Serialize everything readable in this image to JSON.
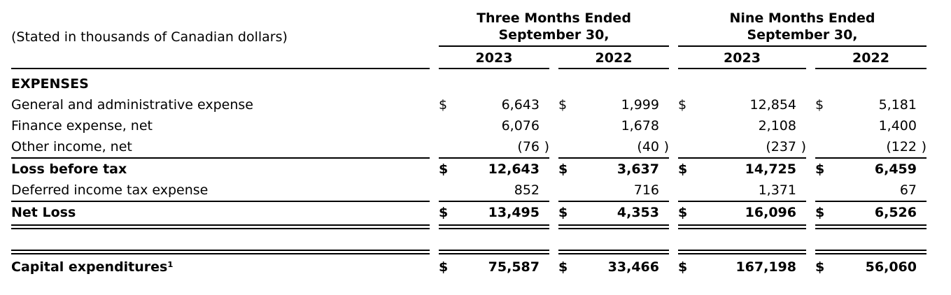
{
  "document": {
    "unit_note": "(Stated in thousands of Canadian dollars)",
    "header": {
      "groups": [
        {
          "line1": "Three Months Ended",
          "line2": "September 30,",
          "years": [
            "2023",
            "2022"
          ]
        },
        {
          "line1": "Nine Months Ended",
          "line2": "September 30,",
          "years": [
            "2023",
            "2022"
          ]
        }
      ]
    },
    "rows": [
      {
        "label": "EXPENSES",
        "cells": [
          {
            "dollar": "",
            "amount": "",
            "paren": ""
          },
          {
            "dollar": "",
            "amount": "",
            "paren": ""
          },
          {
            "dollar": "",
            "amount": "",
            "paren": ""
          },
          {
            "dollar": "",
            "amount": "",
            "paren": ""
          }
        ]
      },
      {
        "label": "General and administrative expense",
        "cells": [
          {
            "dollar": "$",
            "amount": "6,643",
            "paren": ""
          },
          {
            "dollar": "$",
            "amount": "1,999",
            "paren": ""
          },
          {
            "dollar": "$",
            "amount": "12,854",
            "paren": ""
          },
          {
            "dollar": "$",
            "amount": "5,181",
            "paren": ""
          }
        ]
      },
      {
        "label": "Finance expense, net",
        "cells": [
          {
            "dollar": "",
            "amount": "6,076",
            "paren": ""
          },
          {
            "dollar": "",
            "amount": "1,678",
            "paren": ""
          },
          {
            "dollar": "",
            "amount": "2,108",
            "paren": ""
          },
          {
            "dollar": "",
            "amount": "1,400",
            "paren": ""
          }
        ]
      },
      {
        "label": "Other income, net",
        "cells": [
          {
            "dollar": "",
            "amount": "(76",
            "paren": ")"
          },
          {
            "dollar": "",
            "amount": "(40",
            "paren": ")"
          },
          {
            "dollar": "",
            "amount": "(237",
            "paren": ")"
          },
          {
            "dollar": "",
            "amount": "(122",
            "paren": ")"
          }
        ]
      },
      {
        "label": "Loss before tax",
        "cells": [
          {
            "dollar": "$",
            "amount": "12,643",
            "paren": ""
          },
          {
            "dollar": "$",
            "amount": "3,637",
            "paren": ""
          },
          {
            "dollar": "$",
            "amount": "14,725",
            "paren": ""
          },
          {
            "dollar": "$",
            "amount": "6,459",
            "paren": ""
          }
        ]
      },
      {
        "label": "Deferred income tax expense",
        "cells": [
          {
            "dollar": "",
            "amount": "852",
            "paren": ""
          },
          {
            "dollar": "",
            "amount": "716",
            "paren": ""
          },
          {
            "dollar": "",
            "amount": "1,371",
            "paren": ""
          },
          {
            "dollar": "",
            "amount": "67",
            "paren": ""
          }
        ]
      },
      {
        "label": "Net Loss",
        "cells": [
          {
            "dollar": "$",
            "amount": "13,495",
            "paren": ""
          },
          {
            "dollar": "$",
            "amount": "4,353",
            "paren": ""
          },
          {
            "dollar": "$",
            "amount": "16,096",
            "paren": ""
          },
          {
            "dollar": "$",
            "amount": "6,526",
            "paren": ""
          }
        ]
      },
      {
        "label": "Capital expenditures¹",
        "cells": [
          {
            "dollar": "$",
            "amount": "75,587",
            "paren": ""
          },
          {
            "dollar": "$",
            "amount": "33,466",
            "paren": ""
          },
          {
            "dollar": "$",
            "amount": "167,198",
            "paren": ""
          },
          {
            "dollar": "$",
            "amount": "56,060",
            "paren": ""
          }
        ]
      }
    ]
  }
}
